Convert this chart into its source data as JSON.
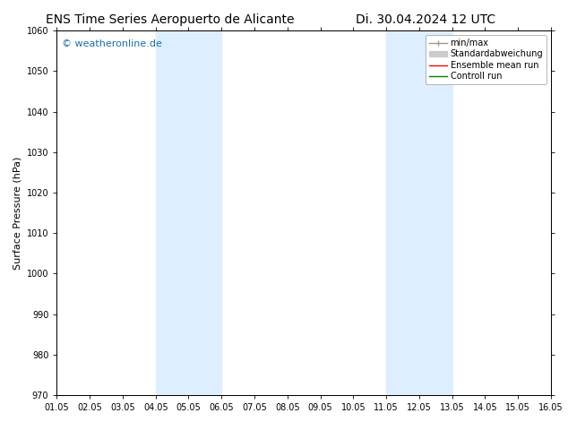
{
  "title_left": "ENS Time Series Aeropuerto de Alicante",
  "title_right": "Di. 30.04.2024 12 UTC",
  "ylabel": "Surface Pressure (hPa)",
  "ylim": [
    970,
    1060
  ],
  "yticks": [
    970,
    980,
    990,
    1000,
    1010,
    1020,
    1030,
    1040,
    1050,
    1060
  ],
  "xlim_start": 0,
  "xlim_end": 15,
  "xtick_labels": [
    "01.05",
    "02.05",
    "03.05",
    "04.05",
    "05.05",
    "06.05",
    "07.05",
    "08.05",
    "09.05",
    "10.05",
    "11.05",
    "12.05",
    "13.05",
    "14.05",
    "15.05",
    "16.05"
  ],
  "watermark": "© weatheronline.de",
  "watermark_color": "#1a6faf",
  "background_color": "#ffffff",
  "plot_bg_color": "#ffffff",
  "shaded_bands": [
    {
      "x_start": 3,
      "x_end": 5,
      "color": "#ddeeff"
    },
    {
      "x_start": 10,
      "x_end": 12,
      "color": "#ddeeff"
    }
  ],
  "legend_entries": [
    {
      "label": "min/max",
      "color": "#999999",
      "linestyle": "-",
      "linewidth": 1.0
    },
    {
      "label": "Standardabweichung",
      "color": "#cccccc",
      "linestyle": "-",
      "linewidth": 5
    },
    {
      "label": "Ensemble mean run",
      "color": "#ff0000",
      "linestyle": "-",
      "linewidth": 1.0
    },
    {
      "label": "Controll run",
      "color": "#008000",
      "linestyle": "-",
      "linewidth": 1.0
    }
  ],
  "title_fontsize": 10,
  "axis_label_fontsize": 8,
  "tick_fontsize": 7,
  "legend_fontsize": 7,
  "watermark_fontsize": 8
}
